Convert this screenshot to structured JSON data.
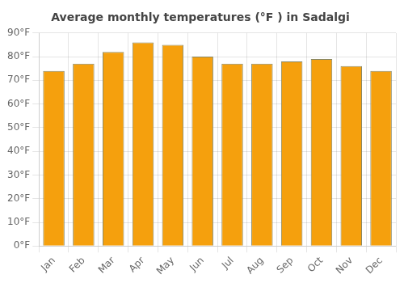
{
  "chart_data": {
    "type": "bar",
    "title": "Average monthly temperatures (°F ) in Sadalgi",
    "categories": [
      "Jan",
      "Feb",
      "Mar",
      "Apr",
      "May",
      "Jun",
      "Jul",
      "Aug",
      "Sep",
      "Oct",
      "Nov",
      "Dec"
    ],
    "values": [
      74,
      77,
      82,
      86,
      85,
      80,
      77,
      77,
      78,
      79,
      76,
      74
    ],
    "color": "#F5A00D",
    "ylim": [
      0,
      90
    ],
    "yticks": [
      {
        "value": 0,
        "label": "0°F"
      },
      {
        "value": 10,
        "label": "10°F"
      },
      {
        "value": 20,
        "label": "20°F"
      },
      {
        "value": 30,
        "label": "30°F"
      },
      {
        "value": 40,
        "label": "40°F"
      },
      {
        "value": 50,
        "label": "50°F"
      },
      {
        "value": 60,
        "label": "60°F"
      },
      {
        "value": 70,
        "label": "70°F"
      },
      {
        "value": 80,
        "label": "80°F"
      },
      {
        "value": 90,
        "label": "90°F"
      }
    ],
    "grid": true
  }
}
